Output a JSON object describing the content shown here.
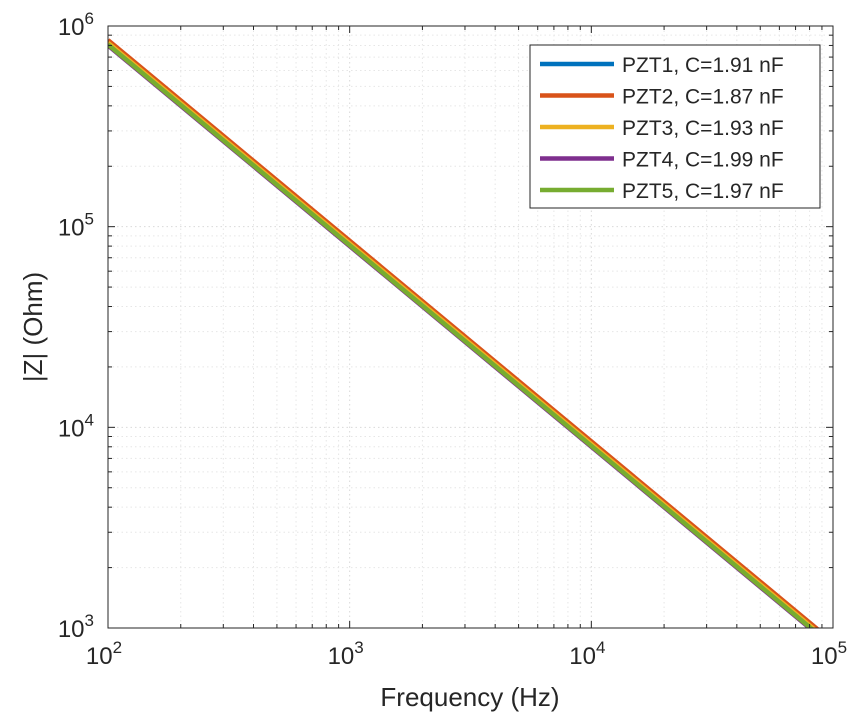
{
  "chart_data": {
    "type": "line",
    "title": "",
    "xlabel": "Frequency (Hz)",
    "ylabel": "|Z| (Ohm)",
    "x_scale": "log",
    "y_scale": "log",
    "xlim": [
      100,
      100000
    ],
    "ylim": [
      1000,
      1000000
    ],
    "x_ticks": [
      {
        "base": "10",
        "exp": "2",
        "value": 100
      },
      {
        "base": "10",
        "exp": "3",
        "value": 1000
      },
      {
        "base": "10",
        "exp": "4",
        "value": 10000
      },
      {
        "base": "10",
        "exp": "5",
        "value": 100000
      }
    ],
    "y_ticks": [
      {
        "base": "10",
        "exp": "3",
        "value": 1000
      },
      {
        "base": "10",
        "exp": "4",
        "value": 10000
      },
      {
        "base": "10",
        "exp": "5",
        "value": 100000
      },
      {
        "base": "10",
        "exp": "6",
        "value": 1000000
      }
    ],
    "grid": true,
    "minor_grid": true,
    "legend_position": "top-right",
    "series": [
      {
        "name": "PZT1, C=1.91 nF",
        "color": "#0072BD",
        "x": [
          100,
          100000
        ],
        "y": [
          833000,
          833
        ]
      },
      {
        "name": "PZT2, C=1.87 nF",
        "color": "#D95319",
        "x": [
          100,
          100000
        ],
        "y": [
          851000,
          851
        ]
      },
      {
        "name": "PZT3, C=1.93 nF",
        "color": "#EDB120",
        "x": [
          100,
          100000
        ],
        "y": [
          825000,
          825
        ]
      },
      {
        "name": "PZT4, C=1.99 nF",
        "color": "#7E2F8E",
        "x": [
          100,
          100000
        ],
        "y": [
          800000,
          800
        ]
      },
      {
        "name": "PZT5, C=1.97 nF",
        "color": "#77AC30",
        "x": [
          100,
          100000
        ],
        "y": [
          808000,
          808
        ]
      }
    ]
  }
}
